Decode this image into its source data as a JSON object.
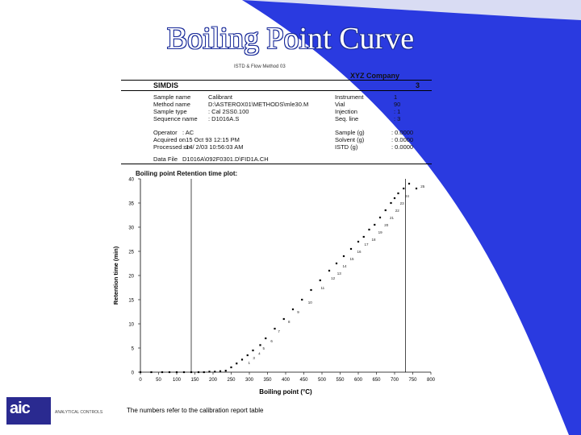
{
  "slide": {
    "title": "Boiling Point Curve"
  },
  "report": {
    "header_small": "ISTD & Flow Method 03",
    "company": "XYZ Company",
    "bar_left": "SIMDIS",
    "bar_right": "3",
    "left_labels": [
      "Sample name",
      "Method name",
      "Sample type",
      "Sequence name"
    ],
    "left_values": [
      "Calibrant",
      "D:\\ASTEROX01\\METHODS\\mle30.M",
      ": Cal 2SS0.100",
      ": D1016A.S"
    ],
    "right_labels": [
      "Instrument",
      "Vial",
      "Injection",
      "Seq. line"
    ],
    "right_values": [
      "1",
      "90",
      ": 1",
      ": 3"
    ],
    "operator_labels": [
      "Operator",
      "Acquired on",
      "Processed on"
    ],
    "operator_values": [
      ": AC",
      ": 15 Oct 93 12:15 PM",
      ": 14/ 2/03 10:56:03 AM"
    ],
    "amount_labels": [
      "Sample (g)",
      "Solvent (g)",
      "ISTD (g)"
    ],
    "amount_values": [
      ": 0.0000",
      ": 0.0000",
      ": 0.0000"
    ],
    "data_file_label": "Data File",
    "data_file_value": "D1016A\\092F0301.D\\FID1A.CH",
    "plot_title": "Boiling point Retention time plot:"
  },
  "footnote": "The numbers refer to the calibration report table",
  "logo": {
    "text": "aic",
    "subtext": "ANALYTICAL CONTROLS"
  },
  "colors": {
    "accent": "#2a3ae0",
    "title_outline": "#1b2c9a"
  },
  "chart_data": {
    "type": "scatter",
    "title": "",
    "xlabel": "Boiling point (°C)",
    "ylabel": "Retention time (min)",
    "xlim": [
      0,
      800
    ],
    "ylim": [
      0,
      40
    ],
    "xticks": [
      0,
      50,
      100,
      150,
      200,
      250,
      300,
      350,
      400,
      450,
      500,
      550,
      600,
      650,
      700,
      750,
      800
    ],
    "yticks": [
      0,
      5,
      10,
      15,
      20,
      25,
      30,
      35,
      40
    ],
    "vlines": [
      140,
      730
    ],
    "points": [
      {
        "x": 0,
        "y": 0
      },
      {
        "x": 30,
        "y": 0
      },
      {
        "x": 60,
        "y": 0
      },
      {
        "x": 80,
        "y": 0
      },
      {
        "x": 100,
        "y": 0
      },
      {
        "x": 120,
        "y": 0
      },
      {
        "x": 140,
        "y": 0
      },
      {
        "x": 160,
        "y": 0
      },
      {
        "x": 175,
        "y": 0
      },
      {
        "x": 190,
        "y": 0.1
      },
      {
        "x": 205,
        "y": 0.1
      },
      {
        "x": 220,
        "y": 0.2
      },
      {
        "x": 235,
        "y": 0.3
      },
      {
        "x": 250,
        "y": 1.0
      },
      {
        "x": 265,
        "y": 1.8
      },
      {
        "x": 280,
        "y": 2.6
      },
      {
        "x": 295,
        "y": 3.5
      },
      {
        "x": 310,
        "y": 4.5
      },
      {
        "x": 330,
        "y": 5.6
      },
      {
        "x": 345,
        "y": 7.0
      },
      {
        "x": 370,
        "y": 9.0
      },
      {
        "x": 395,
        "y": 11.0
      },
      {
        "x": 420,
        "y": 13.0
      },
      {
        "x": 445,
        "y": 15.0
      },
      {
        "x": 470,
        "y": 17.0
      },
      {
        "x": 495,
        "y": 19.0
      },
      {
        "x": 520,
        "y": 21.0
      },
      {
        "x": 540,
        "y": 22.5
      },
      {
        "x": 560,
        "y": 24.0
      },
      {
        "x": 580,
        "y": 25.5
      },
      {
        "x": 600,
        "y": 27.0
      },
      {
        "x": 615,
        "y": 28.0
      },
      {
        "x": 630,
        "y": 29.5
      },
      {
        "x": 645,
        "y": 30.5
      },
      {
        "x": 660,
        "y": 32.0
      },
      {
        "x": 675,
        "y": 33.5
      },
      {
        "x": 690,
        "y": 35.0
      },
      {
        "x": 700,
        "y": 36.0
      },
      {
        "x": 710,
        "y": 37.0
      },
      {
        "x": 725,
        "y": 38.0
      },
      {
        "x": 740,
        "y": 39.0
      },
      {
        "x": 760,
        "y": 38.0
      }
    ],
    "annotations": [
      {
        "x": 290,
        "y": 2.0,
        "text": "1"
      },
      {
        "x": 303,
        "y": 3.0,
        "text": "3"
      },
      {
        "x": 318,
        "y": 3.9,
        "text": "4"
      },
      {
        "x": 330,
        "y": 5.0,
        "text": "5"
      },
      {
        "x": 352,
        "y": 6.5,
        "text": "6"
      },
      {
        "x": 372,
        "y": 8.5,
        "text": "7"
      },
      {
        "x": 400,
        "y": 10.5,
        "text": "8"
      },
      {
        "x": 425,
        "y": 12.5,
        "text": "9"
      },
      {
        "x": 455,
        "y": 14.5,
        "text": "10"
      },
      {
        "x": 490,
        "y": 17.5,
        "text": "11"
      },
      {
        "x": 518,
        "y": 19.5,
        "text": "12"
      },
      {
        "x": 535,
        "y": 20.5,
        "text": "13"
      },
      {
        "x": 550,
        "y": 22.0,
        "text": "14"
      },
      {
        "x": 570,
        "y": 23.5,
        "text": "15"
      },
      {
        "x": 590,
        "y": 25.0,
        "text": "16"
      },
      {
        "x": 610,
        "y": 26.5,
        "text": "17"
      },
      {
        "x": 630,
        "y": 27.5,
        "text": "18"
      },
      {
        "x": 648,
        "y": 29.0,
        "text": "19"
      },
      {
        "x": 665,
        "y": 30.5,
        "text": "20"
      },
      {
        "x": 680,
        "y": 32.0,
        "text": "21"
      },
      {
        "x": 695,
        "y": 33.5,
        "text": "22"
      },
      {
        "x": 708,
        "y": 35.0,
        "text": "23"
      },
      {
        "x": 722,
        "y": 36.5,
        "text": "24"
      },
      {
        "x": 765,
        "y": 38.5,
        "text": "25"
      }
    ]
  }
}
